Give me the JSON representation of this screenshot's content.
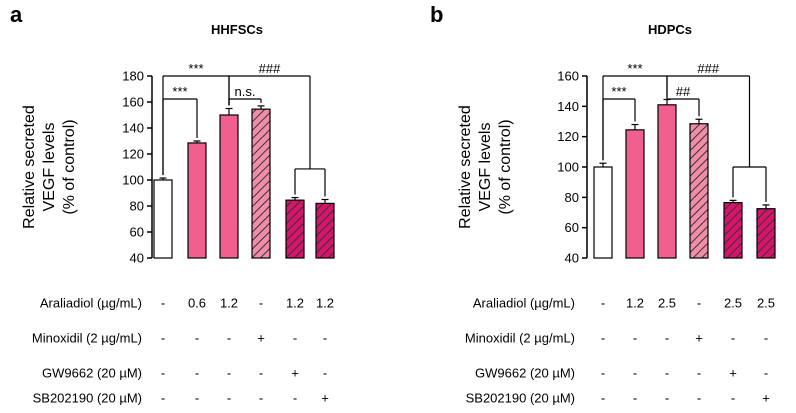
{
  "colors": {
    "control": "#ffffff",
    "treated": "#f0608f",
    "minoxidil": "#f28da9",
    "inhibitor": "#d6146a",
    "hatch": "#333333",
    "axis": "#000000"
  },
  "chart_data": [
    {
      "panel": "a",
      "type": "bar",
      "title": "HHFSCs",
      "ylabel": [
        "Relative secreted",
        "VEGF levels",
        "(% of control)"
      ],
      "ylim": [
        40,
        180
      ],
      "yticks": [
        40,
        60,
        80,
        100,
        120,
        140,
        160,
        180
      ],
      "values": [
        100,
        128.5,
        150,
        154.5,
        84.5,
        82
      ],
      "errors": [
        1.5,
        1.5,
        5,
        2.5,
        2,
        3
      ],
      "bar_styles": [
        "control",
        "treated",
        "treated",
        "minoxidil-hatched",
        "inhibitor-hatched",
        "inhibitor-hatched"
      ],
      "conditions": [
        {
          "label": "Araliadiol (µg/mL)",
          "values": [
            "-",
            "0.6",
            "1.2",
            "-",
            "1.2",
            "1.2"
          ]
        },
        {
          "label": "Minoxidil (2 µg/mL)",
          "values": [
            "-",
            "-",
            "-",
            "+",
            "-",
            "-"
          ]
        },
        {
          "label": "GW9662 (20 µM)",
          "values": [
            "-",
            "-",
            "-",
            "-",
            "+",
            "-"
          ]
        },
        {
          "label": "SB202190 (20 µM)",
          "values": [
            "-",
            "-",
            "-",
            "-",
            "-",
            "+"
          ]
        }
      ],
      "annotations": [
        {
          "from": 0,
          "to": 1,
          "label": "***"
        },
        {
          "from": 0,
          "to": 2,
          "label": "***"
        },
        {
          "from": 2,
          "to": 3,
          "label": "n.s."
        },
        {
          "from": 2,
          "to": "4-5",
          "label": "###"
        }
      ]
    },
    {
      "panel": "b",
      "type": "bar",
      "title": "HDPCs",
      "ylabel": [
        "Relative secreted",
        "VEGF levels",
        "(% of control)"
      ],
      "ylim": [
        40,
        160
      ],
      "yticks": [
        40,
        60,
        80,
        100,
        120,
        140,
        160
      ],
      "values": [
        100,
        124.5,
        141,
        128.5,
        76.5,
        72.5
      ],
      "errors": [
        2.5,
        3.5,
        3.5,
        3,
        1.5,
        2.5
      ],
      "bar_styles": [
        "control",
        "treated",
        "treated",
        "minoxidil-hatched",
        "inhibitor-hatched",
        "inhibitor-hatched"
      ],
      "conditions": [
        {
          "label": "Araliadiol (µg/mL)",
          "values": [
            "-",
            "1.2",
            "2.5",
            "-",
            "2.5",
            "2.5"
          ]
        },
        {
          "label": "Minoxidil (2 µg/mL)",
          "values": [
            "-",
            "-",
            "-",
            "+",
            "-",
            "-"
          ]
        },
        {
          "label": "GW9662 (20 µM)",
          "values": [
            "-",
            "-",
            "-",
            "-",
            "+",
            "-"
          ]
        },
        {
          "label": "SB202190 (20 µM)",
          "values": [
            "-",
            "-",
            "-",
            "-",
            "-",
            "+"
          ]
        }
      ],
      "annotations": [
        {
          "from": 0,
          "to": 1,
          "label": "***"
        },
        {
          "from": 0,
          "to": 2,
          "label": "***"
        },
        {
          "from": 2,
          "to": 3,
          "label": "##"
        },
        {
          "from": 2,
          "to": "4-5",
          "label": "###"
        }
      ]
    }
  ]
}
